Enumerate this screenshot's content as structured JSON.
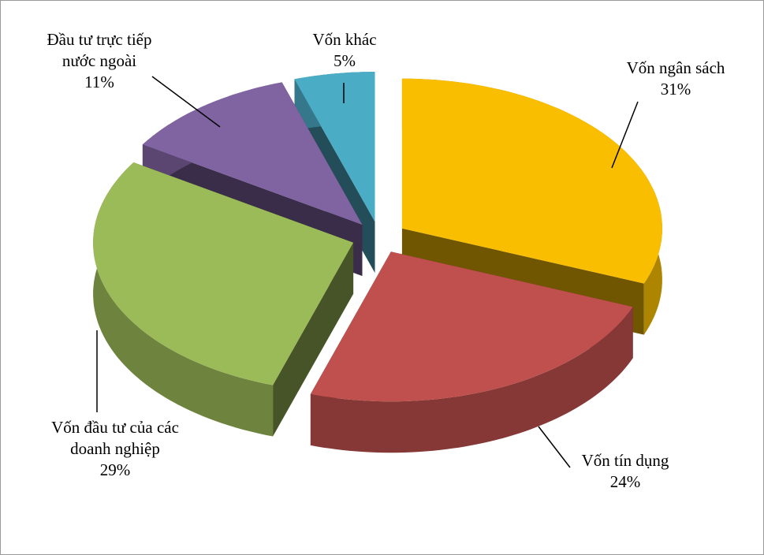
{
  "chart_data": {
    "type": "pie",
    "three_d": true,
    "exploded": true,
    "categories": [
      "Vốn ngân sách",
      "Vốn tín dụng",
      "Vốn đầu tư của các doanh nghiệp",
      "Đầu tư trực tiếp nước ngoài",
      "Vốn khác"
    ],
    "values": [
      31,
      24,
      29,
      11,
      5
    ],
    "value_labels": [
      "31%",
      "24%",
      "29%",
      "11%",
      "5%"
    ],
    "colors": [
      "#F9BE00",
      "#C0504D",
      "#9BBB59",
      "#8064A2",
      "#4BACC6"
    ]
  }
}
